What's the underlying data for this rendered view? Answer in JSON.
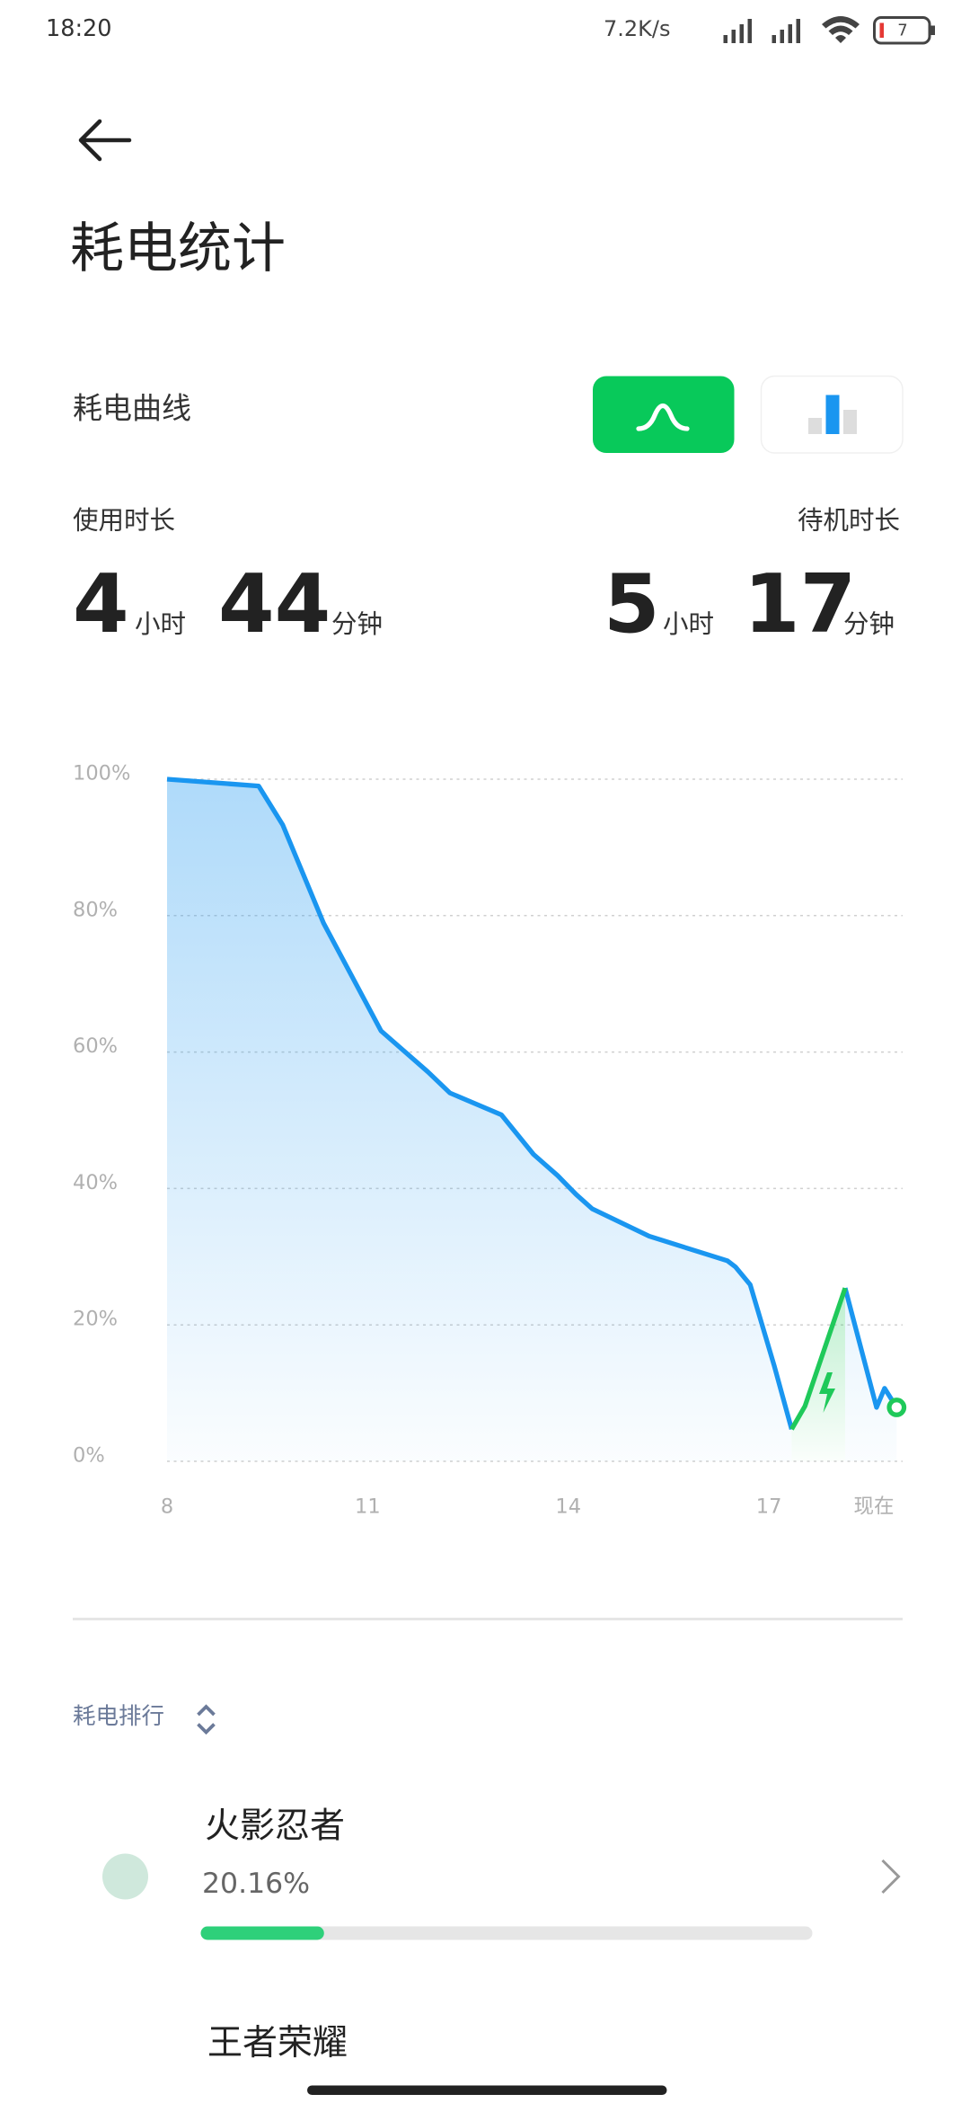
{
  "status_bar": {
    "time": "18:20",
    "network_speed": "7.2K/s",
    "battery": "7"
  },
  "header": {
    "title": "耗电统计"
  },
  "section_title": "耗电曲线",
  "usage": {
    "label": "使用时长",
    "hours": 4,
    "hours_unit": "小时",
    "minutes": 44,
    "minutes_unit": "分钟"
  },
  "standby": {
    "label": "待机时长",
    "hours": 5,
    "hours_unit": "小时",
    "minutes": 17,
    "minutes_unit": "分钟"
  },
  "chart_data": {
    "type": "line",
    "x": [
      8,
      9.37,
      9.73,
      10.34,
      11.2,
      11.9,
      12.23,
      13,
      13.48,
      13.84,
      14.12,
      14.36,
      15.21,
      16.38,
      16.5,
      16.72,
      17.08,
      17.34,
      17.54,
      18.14,
      18.61,
      18.73,
      18.91
    ],
    "series": [
      {
        "color": "#1a96f0",
        "values": [
          100,
          99,
          93.3,
          78.9,
          63.1,
          57.1,
          54,
          50.8,
          45,
          41.9,
          39.1,
          37,
          33,
          29.4,
          28.5,
          25.9,
          14,
          4.7,
          null,
          25.4,
          7.9,
          10.7,
          7.9
        ]
      },
      {
        "color": "#1fc95a",
        "values": [
          null,
          null,
          null,
          null,
          null,
          null,
          null,
          null,
          null,
          null,
          null,
          null,
          null,
          null,
          null,
          null,
          null,
          4.7,
          8.1,
          25.4,
          null,
          null,
          null
        ]
      }
    ],
    "xlim": [
      8,
      19
    ],
    "xticks": [
      8,
      11,
      14,
      17,
      {
        "value": 18.57,
        "label": "现在"
      }
    ],
    "ylim": [
      0,
      100
    ],
    "yticks": [
      {
        "value": 0,
        "label": "0%"
      },
      {
        "value": 20,
        "label": "20%"
      },
      {
        "value": 40,
        "label": "40%"
      },
      {
        "value": 60,
        "label": "60%"
      },
      {
        "value": 80,
        "label": "80%"
      },
      {
        "value": 100,
        "label": "100%"
      }
    ],
    "grid": true
  },
  "ranking": {
    "title": "耗电排行",
    "items": [
      {
        "name": "火影忍者",
        "percent": 20.16,
        "percent_label": "20.16%"
      },
      {
        "name": "王者荣耀"
      }
    ]
  }
}
